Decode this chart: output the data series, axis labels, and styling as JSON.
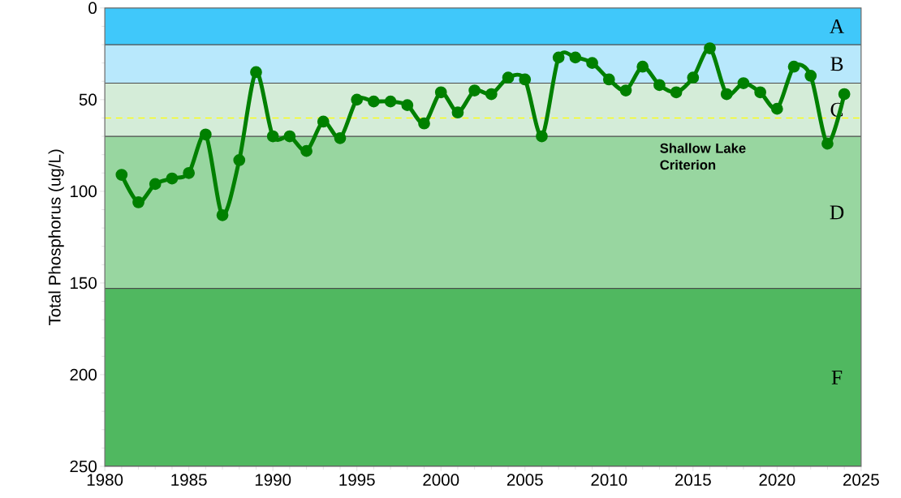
{
  "chart_data": {
    "type": "line",
    "ylabel": "Total Phosphorus (ug/L)",
    "x": [
      1981,
      1982,
      1983,
      1984,
      1985,
      1986,
      1987,
      1988,
      1989,
      1990,
      1991,
      1992,
      1993,
      1994,
      1995,
      1996,
      1997,
      1998,
      1999,
      2000,
      2001,
      2002,
      2003,
      2004,
      2005,
      2006,
      2007,
      2008,
      2009,
      2010,
      2011,
      2012,
      2013,
      2014,
      2015,
      2016,
      2017,
      2018,
      2019,
      2020,
      2021,
      2022,
      2023,
      2024
    ],
    "series": [
      {
        "color": "#008000",
        "values": [
          91,
          106,
          96,
          93,
          90,
          69,
          113,
          83,
          35,
          70,
          70,
          78,
          62,
          71,
          50,
          51,
          51,
          53,
          63,
          46,
          57,
          45,
          47,
          38,
          39,
          70,
          27,
          27,
          30,
          39,
          45,
          32,
          42,
          46,
          38,
          22,
          47,
          41,
          46,
          55,
          32,
          37,
          74,
          47
        ]
      }
    ],
    "xlim": [
      1980,
      2025
    ],
    "xticks": [
      1980,
      1985,
      1990,
      1995,
      2000,
      2005,
      2010,
      2015,
      2020,
      2025
    ],
    "ylim": [
      250,
      0
    ],
    "yticks": [
      0,
      50,
      100,
      150,
      200,
      250
    ],
    "marker": "circle",
    "line_style": "solid",
    "bands": [
      {
        "axis": "y",
        "from": 0,
        "to": 20,
        "label": "A",
        "color": "#40c8fa"
      },
      {
        "axis": "y",
        "from": 20,
        "to": 41,
        "label": "B",
        "color": "#b8e8fc"
      },
      {
        "axis": "y",
        "from": 41,
        "to": 70,
        "label": "C",
        "color": "#d4ecd8"
      },
      {
        "axis": "y",
        "from": 70,
        "to": 153,
        "label": "D",
        "color": "#98d6a0"
      },
      {
        "axis": "y",
        "from": 153,
        "to": 250,
        "label": "F",
        "color": "#50b860"
      }
    ],
    "ref_lines": [
      {
        "axis": "y",
        "value": 60,
        "label": "Shallow Lake Criterion",
        "color": "#ffff00",
        "line_style": "dashed"
      }
    ]
  }
}
